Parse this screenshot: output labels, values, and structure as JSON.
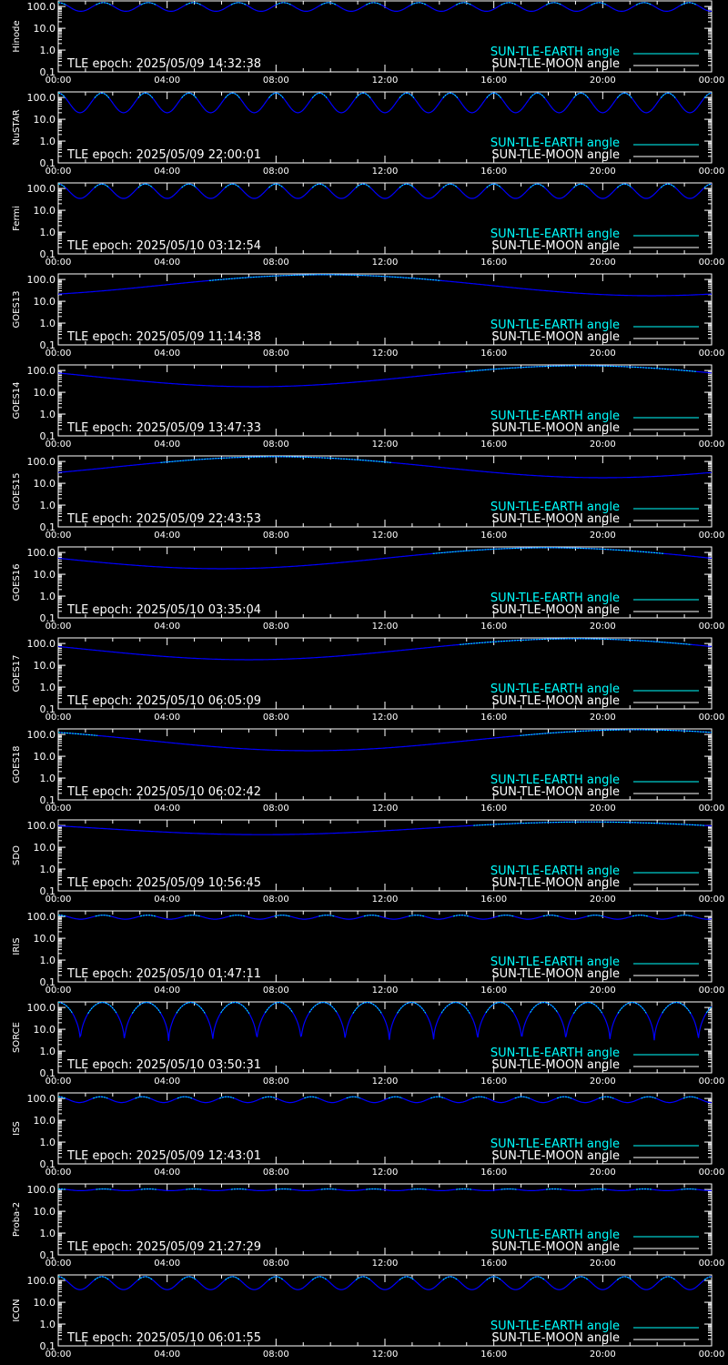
{
  "page": {
    "background": "#000000",
    "colors": {
      "axis": "#ffffff",
      "earth_curve": "#0000ff",
      "earth_highlight": "#00ffff",
      "legend_earth": "#00ffff",
      "legend_moon": "#ffffff"
    }
  },
  "common": {
    "x_ticks": [
      "00:00",
      "04:00",
      "08:00",
      "12:00",
      "16:00",
      "20:00",
      "00:00"
    ],
    "y_ticks": [
      "0.1",
      "1.0",
      "10.0",
      "100.0"
    ],
    "legend": [
      "SUN-TLE-EARTH angle",
      "SUN-TLE-MOON angle"
    ]
  },
  "chart_data": [
    {
      "type": "line",
      "ylabel": "Hinode",
      "epoch": "TLE epoch: 2025/05/09 14:32:38",
      "yscale": "log",
      "ylim": [
        0.1,
        180
      ],
      "xlim": [
        0,
        24
      ],
      "curve": {
        "shape": "periodic",
        "cycles": 14.5,
        "max": 150,
        "min": 60
      }
    },
    {
      "type": "line",
      "ylabel": "NuSTAR",
      "epoch": "TLE epoch: 2025/05/09 22:00:01",
      "yscale": "log",
      "ylim": [
        0.1,
        180
      ],
      "xlim": [
        0,
        24
      ],
      "curve": {
        "shape": "periodic",
        "cycles": 15,
        "max": 160,
        "min": 20
      }
    },
    {
      "type": "line",
      "ylabel": "Fermi",
      "epoch": "TLE epoch: 2025/05/10 03:12:54",
      "yscale": "log",
      "ylim": [
        0.1,
        180
      ],
      "xlim": [
        0,
        24
      ],
      "curve": {
        "shape": "periodic",
        "cycles": 15,
        "max": 160,
        "min": 35
      }
    },
    {
      "type": "line",
      "ylabel": "GOES13",
      "epoch": "TLE epoch: 2025/05/09 11:14:38",
      "yscale": "log",
      "ylim": [
        0.1,
        180
      ],
      "xlim": [
        0,
        24
      ],
      "curve": {
        "shape": "daily",
        "min_time": 21.8,
        "max": 165,
        "min": 18
      }
    },
    {
      "type": "line",
      "ylabel": "GOES14",
      "epoch": "TLE epoch: 2025/05/09 13:47:33",
      "yscale": "log",
      "ylim": [
        0.1,
        180
      ],
      "xlim": [
        0,
        24
      ],
      "curve": {
        "shape": "daily",
        "min_time": 7.2,
        "max": 165,
        "min": 18
      }
    },
    {
      "type": "line",
      "ylabel": "GOES15",
      "epoch": "TLE epoch: 2025/05/09 22:43:53",
      "yscale": "log",
      "ylim": [
        0.1,
        180
      ],
      "xlim": [
        0,
        24
      ],
      "curve": {
        "shape": "daily",
        "min_time": 20.0,
        "max": 165,
        "min": 18
      }
    },
    {
      "type": "line",
      "ylabel": "GOES16",
      "epoch": "TLE epoch: 2025/05/10 03:35:04",
      "yscale": "log",
      "ylim": [
        0.1,
        180
      ],
      "xlim": [
        0,
        24
      ],
      "curve": {
        "shape": "daily",
        "min_time": 6.0,
        "max": 165,
        "min": 18
      }
    },
    {
      "type": "line",
      "ylabel": "GOES17",
      "epoch": "TLE epoch: 2025/05/10 06:05:09",
      "yscale": "log",
      "ylim": [
        0.1,
        180
      ],
      "xlim": [
        0,
        24
      ],
      "curve": {
        "shape": "daily",
        "min_time": 7.0,
        "max": 165,
        "min": 18
      }
    },
    {
      "type": "line",
      "ylabel": "GOES18",
      "epoch": "TLE epoch: 2025/05/10 06:02:42",
      "yscale": "log",
      "ylim": [
        0.1,
        180
      ],
      "xlim": [
        0,
        24
      ],
      "curve": {
        "shape": "daily",
        "min_time": 9.2,
        "max": 165,
        "min": 18
      }
    },
    {
      "type": "line",
      "ylabel": "SDO",
      "epoch": "TLE epoch: 2025/05/09 10:56:45",
      "yscale": "log",
      "ylim": [
        0.1,
        180
      ],
      "xlim": [
        0,
        24
      ],
      "curve": {
        "shape": "daily",
        "min_time": 7.5,
        "max": 145,
        "min": 38
      }
    },
    {
      "type": "line",
      "ylabel": "IRIS",
      "epoch": "TLE epoch: 2025/05/10 01:47:11",
      "yscale": "log",
      "ylim": [
        0.1,
        180
      ],
      "xlim": [
        0,
        24
      ],
      "curve": {
        "shape": "periodic",
        "cycles": 14.6,
        "max": 115,
        "min": 75
      }
    },
    {
      "type": "line",
      "ylabel": "SORCE",
      "epoch": "TLE epoch: 2025/05/10 03:50:31",
      "yscale": "log",
      "ylim": [
        0.1,
        180
      ],
      "xlim": [
        0,
        24
      ],
      "curve": {
        "shape": "cusp",
        "cycles": 14.8,
        "max": 170,
        "min": 2.5
      }
    },
    {
      "type": "line",
      "ylabel": "ISS",
      "epoch": "TLE epoch: 2025/05/09 12:43:01",
      "yscale": "log",
      "ylim": [
        0.1,
        180
      ],
      "xlim": [
        0,
        24
      ],
      "curve": {
        "shape": "periodic",
        "cycles": 15.5,
        "max": 120,
        "min": 65
      }
    },
    {
      "type": "line",
      "ylabel": "Proba-2",
      "epoch": "TLE epoch: 2025/05/09 21:27:29",
      "yscale": "log",
      "ylim": [
        0.1,
        180
      ],
      "xlim": [
        0,
        24
      ],
      "curve": {
        "shape": "periodic",
        "cycles": 14.5,
        "max": 105,
        "min": 88
      }
    },
    {
      "type": "line",
      "ylabel": "ICON",
      "epoch": "TLE epoch: 2025/05/10 06:01:55",
      "yscale": "log",
      "ylim": [
        0.1,
        180
      ],
      "xlim": [
        0,
        24
      ],
      "curve": {
        "shape": "periodic",
        "cycles": 15,
        "max": 150,
        "min": 38
      }
    }
  ]
}
